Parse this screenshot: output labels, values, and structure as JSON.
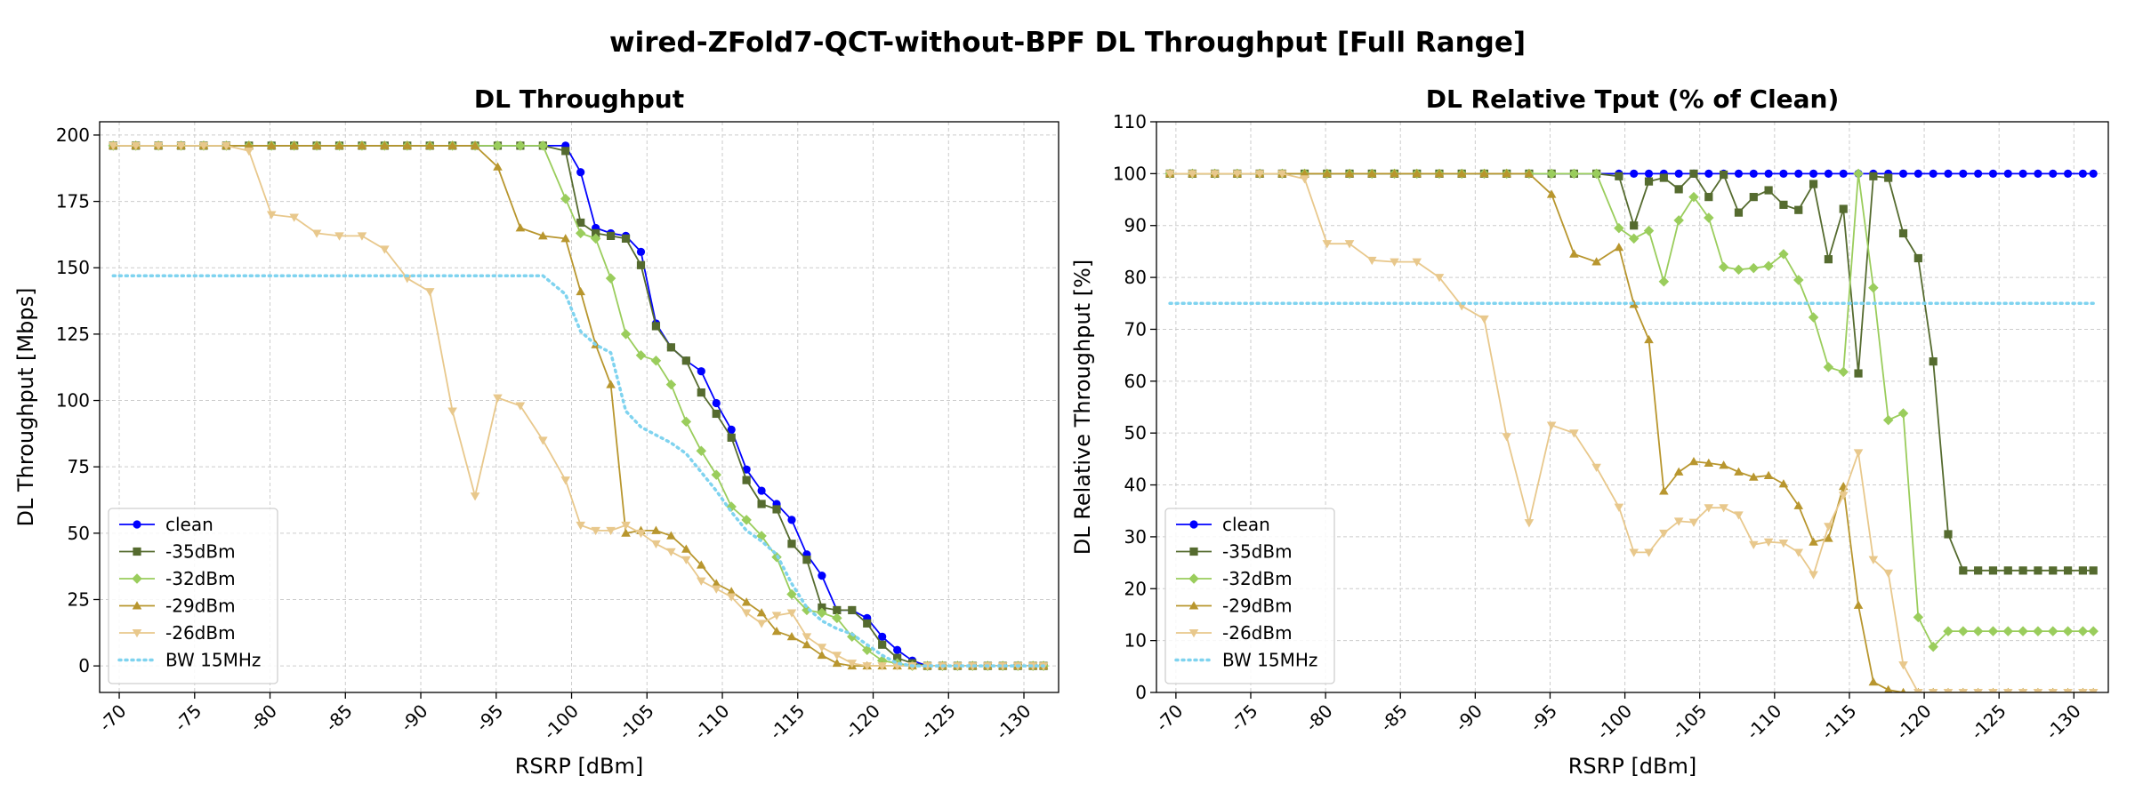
{
  "suptitle": "wired-ZFold7-QCT-without-BPF DL Throughput [Full Range]",
  "chart_data": [
    {
      "type": "line",
      "title": "DL Throughput",
      "xlabel": "RSRP [dBm]",
      "ylabel": "DL Throughput [Mbps]",
      "xlim": [
        -68.7,
        -132.3
      ],
      "ylim": [
        -10,
        205
      ],
      "xticks": [
        -70,
        -75,
        -80,
        -85,
        -90,
        -95,
        -100,
        -105,
        -110,
        -115,
        -120,
        -125,
        -130
      ],
      "xticklabels": [
        "-70",
        "-75",
        "-80",
        "-85",
        "-90",
        "-95",
        "-100",
        "-105",
        "-110",
        "-115",
        "-120",
        "-125",
        "-130"
      ],
      "yticks": [
        0,
        25,
        50,
        75,
        100,
        125,
        150,
        175,
        200
      ],
      "yticklabels": [
        "0",
        "25",
        "50",
        "75",
        "100",
        "125",
        "150",
        "175",
        "200"
      ],
      "grid": true,
      "legend": "lower-left",
      "x": [
        -69.6,
        -71.1,
        -72.6,
        -74.1,
        -75.6,
        -77.1,
        -78.6,
        -80.1,
        -81.6,
        -83.1,
        -84.6,
        -86.1,
        -87.6,
        -89.1,
        -90.6,
        -92.1,
        -93.6,
        -95.1,
        -96.6,
        -98.1,
        -99.6,
        -100.6,
        -101.6,
        -102.6,
        -103.6,
        -104.6,
        -105.6,
        -106.6,
        -107.6,
        -108.6,
        -109.6,
        -110.6,
        -111.6,
        -112.6,
        -113.6,
        -114.6,
        -115.6,
        -116.6,
        -117.6,
        -118.6,
        -119.6,
        -120.6,
        -121.6,
        -122.6,
        -123.6,
        -124.6,
        -125.6,
        -126.6,
        -127.6,
        -128.6,
        -129.6,
        -130.6,
        -131.3
      ],
      "series": [
        {
          "name": "clean",
          "color": "#0000ff",
          "marker": "circle",
          "values": [
            196,
            196,
            196,
            196,
            196,
            196,
            196,
            196,
            196,
            196,
            196,
            196,
            196,
            196,
            196,
            196,
            196,
            196,
            196,
            196,
            196,
            186,
            165,
            163,
            162,
            156,
            129,
            120,
            115,
            111,
            99,
            89,
            74,
            66,
            61,
            55,
            42,
            34,
            21,
            21,
            18,
            11,
            6,
            2,
            0,
            0,
            0,
            0,
            0,
            0,
            0,
            0,
            0
          ]
        },
        {
          "name": "-35dBm",
          "color": "#556b2f",
          "marker": "square",
          "values": [
            196,
            196,
            196,
            196,
            196,
            196,
            196,
            196,
            196,
            196,
            196,
            196,
            196,
            196,
            196,
            196,
            196,
            196,
            196,
            196,
            194,
            167,
            163,
            162,
            161,
            151,
            128,
            120,
            115,
            103,
            95,
            86,
            70,
            61,
            59,
            46,
            40,
            22,
            21,
            21,
            16,
            8,
            3,
            1,
            0,
            0,
            0,
            0,
            0,
            0,
            0,
            0,
            0
          ]
        },
        {
          "name": "-32dBm",
          "color": "#9acd5c",
          "marker": "diamond",
          "values": [
            196,
            196,
            196,
            196,
            196,
            196,
            196,
            196,
            196,
            196,
            196,
            196,
            196,
            196,
            196,
            196,
            196,
            196,
            196,
            196,
            176,
            163,
            161,
            146,
            125,
            117,
            115,
            106,
            92,
            81,
            72,
            60,
            55,
            49,
            41,
            27,
            21,
            20,
            18,
            11,
            6,
            2,
            1,
            0,
            0,
            0,
            0,
            0,
            0,
            0,
            0,
            0,
            0
          ]
        },
        {
          "name": "-29dBm",
          "color": "#b8962e",
          "marker": "triangle-up",
          "values": [
            196,
            196,
            196,
            196,
            196,
            196,
            196,
            196,
            196,
            196,
            196,
            196,
            196,
            196,
            196,
            196,
            196,
            188,
            165,
            162,
            161,
            141,
            121,
            106,
            50,
            51,
            51,
            49,
            44,
            38,
            31,
            28,
            24,
            20,
            13,
            11,
            8,
            4,
            1,
            0,
            0,
            0,
            0,
            0,
            0,
            0,
            0,
            0,
            0,
            0,
            0,
            0,
            0
          ]
        },
        {
          "name": "-26dBm",
          "color": "#e8c88c",
          "marker": "triangle-down",
          "values": [
            196,
            196,
            196,
            196,
            196,
            196,
            194,
            170,
            169,
            163,
            162,
            162,
            157,
            146,
            141,
            96,
            64,
            101,
            98,
            85,
            70,
            53,
            51,
            51,
            53,
            50,
            46,
            43,
            40,
            32,
            29,
            26,
            20,
            16,
            19,
            20,
            11,
            7,
            4,
            1,
            0,
            0,
            0,
            0,
            0,
            0,
            0,
            0,
            0,
            0,
            0,
            0,
            0
          ]
        },
        {
          "name": "BW 15MHz",
          "color": "#7fd3ef",
          "marker": "none",
          "dash": "dotted",
          "values": [
            147,
            147,
            147,
            147,
            147,
            147,
            147,
            147,
            147,
            147,
            147,
            147,
            147,
            147,
            147,
            147,
            147,
            147,
            147,
            147,
            140,
            126,
            121,
            118,
            96,
            90,
            87,
            84,
            80,
            73,
            66,
            58,
            51,
            47,
            42,
            31,
            22,
            17,
            14,
            12,
            8,
            4,
            1,
            0,
            0,
            0,
            0,
            0,
            0,
            0,
            0,
            0,
            0
          ]
        }
      ]
    },
    {
      "type": "line",
      "title": "DL Relative Tput (% of Clean)",
      "xlabel": "RSRP [dBm]",
      "ylabel": "DL Relative Throughput [%]",
      "xlim": [
        -68.7,
        -132.3
      ],
      "ylim": [
        0,
        110
      ],
      "xticks": [
        -70,
        -75,
        -80,
        -85,
        -90,
        -95,
        -100,
        -105,
        -110,
        -115,
        -120,
        -125,
        -130
      ],
      "xticklabels": [
        "-70",
        "-75",
        "-80",
        "-85",
        "-90",
        "-95",
        "-100",
        "-105",
        "-110",
        "-115",
        "-120",
        "-125",
        "-130"
      ],
      "yticks": [
        0,
        10,
        20,
        30,
        40,
        50,
        60,
        70,
        80,
        90,
        100,
        110
      ],
      "yticklabels": [
        "0",
        "10",
        "20",
        "30",
        "40",
        "50",
        "60",
        "70",
        "80",
        "90",
        "100",
        "110"
      ],
      "grid": true,
      "legend": "lower-left",
      "x": [
        -69.6,
        -71.1,
        -72.6,
        -74.1,
        -75.6,
        -77.1,
        -78.6,
        -80.1,
        -81.6,
        -83.1,
        -84.6,
        -86.1,
        -87.6,
        -89.1,
        -90.6,
        -92.1,
        -93.6,
        -95.1,
        -96.6,
        -98.1,
        -99.6,
        -100.6,
        -101.6,
        -102.6,
        -103.6,
        -104.6,
        -105.6,
        -106.6,
        -107.6,
        -108.6,
        -109.6,
        -110.6,
        -111.6,
        -112.6,
        -113.6,
        -114.6,
        -115.6,
        -116.6,
        -117.6,
        -118.6,
        -119.6,
        -120.6,
        -121.6,
        -122.6,
        -123.6,
        -124.6,
        -125.6,
        -126.6,
        -127.6,
        -128.6,
        -129.6,
        -130.6,
        -131.3
      ],
      "series": [
        {
          "name": "clean",
          "color": "#0000ff",
          "marker": "circle",
          "values": [
            100,
            100,
            100,
            100,
            100,
            100,
            100,
            100,
            100,
            100,
            100,
            100,
            100,
            100,
            100,
            100,
            100,
            100,
            100,
            100,
            100,
            100,
            100,
            100,
            100,
            100,
            100,
            100,
            100,
            100,
            100,
            100,
            100,
            100,
            100,
            100,
            100,
            100,
            100,
            100,
            100,
            100,
            100,
            100,
            100,
            100,
            100,
            100,
            100,
            100,
            100,
            100,
            100
          ]
        },
        {
          "name": "-35dBm",
          "color": "#556b2f",
          "marker": "square",
          "values": [
            100,
            100,
            100,
            100,
            100,
            100,
            100,
            100,
            100,
            100,
            100,
            100,
            100,
            100,
            100,
            100,
            100,
            100,
            100,
            100,
            99.5,
            90,
            98.5,
            99.2,
            97,
            100,
            95.5,
            99.8,
            92.5,
            95.5,
            96.8,
            94,
            93,
            98,
            83.5,
            93.2,
            61.5,
            99.5,
            99.2,
            88.5,
            83.7,
            63.8,
            30.5,
            23.5,
            23.5,
            23.5,
            23.5,
            23.5,
            23.5,
            23.5,
            23.5,
            23.5,
            23.5
          ]
        },
        {
          "name": "-32dBm",
          "color": "#9acd5c",
          "marker": "diamond",
          "values": [
            100,
            100,
            100,
            100,
            100,
            100,
            100,
            100,
            100,
            100,
            100,
            100,
            100,
            100,
            100,
            100,
            100,
            100,
            100,
            100,
            89.5,
            87.5,
            89,
            79.2,
            91,
            95.5,
            91.5,
            82,
            81.5,
            81.8,
            82.2,
            84.5,
            79.5,
            72.3,
            62.7,
            61.8,
            100,
            78,
            52.5,
            53.8,
            14.5,
            8.8,
            11.8,
            11.8,
            11.8,
            11.8,
            11.8,
            11.8,
            11.8,
            11.8,
            11.8,
            11.8,
            11.8
          ]
        },
        {
          "name": "-29dBm",
          "color": "#b8962e",
          "marker": "triangle-up",
          "values": [
            100,
            100,
            100,
            100,
            100,
            100,
            100,
            100,
            100,
            100,
            100,
            100,
            100,
            100,
            100,
            100,
            100,
            96,
            84.5,
            83,
            85.8,
            74.8,
            68,
            38.8,
            42.5,
            44.5,
            44.2,
            43.8,
            42.5,
            41.5,
            41.8,
            40.2,
            36,
            29,
            29.7,
            39.7,
            16.8,
            2,
            0.5,
            0,
            0,
            0,
            0,
            0,
            0,
            0,
            0,
            0,
            0,
            0,
            0,
            0,
            0
          ]
        },
        {
          "name": "-26dBm",
          "color": "#e8c88c",
          "marker": "triangle-down",
          "values": [
            100,
            100,
            100,
            100,
            100,
            100,
            99,
            86.5,
            86.5,
            83.3,
            83,
            83,
            80,
            74.5,
            72,
            49.3,
            32.7,
            51.5,
            50,
            43.4,
            35.7,
            27,
            27,
            30.7,
            33,
            32.8,
            35.6,
            35.6,
            34.2,
            28.5,
            29,
            28.8,
            27,
            22.7,
            32,
            38,
            46.2,
            25.6,
            23,
            5.3,
            0,
            0,
            0,
            0,
            0,
            0,
            0,
            0,
            0,
            0,
            0,
            0,
            0
          ]
        },
        {
          "name": "BW 15MHz",
          "color": "#7fd3ef",
          "marker": "none",
          "dash": "dotted",
          "values": [
            75,
            75,
            75,
            75,
            75,
            75,
            75,
            75,
            75,
            75,
            75,
            75,
            75,
            75,
            75,
            75,
            75,
            75,
            75,
            75,
            75,
            75,
            75,
            75,
            75,
            75,
            75,
            75,
            75,
            75,
            75,
            75,
            75,
            75,
            75,
            75,
            75,
            75,
            75,
            75,
            75,
            75,
            75,
            75,
            75,
            75,
            75,
            75,
            75,
            75,
            75,
            75,
            75
          ]
        }
      ]
    }
  ]
}
